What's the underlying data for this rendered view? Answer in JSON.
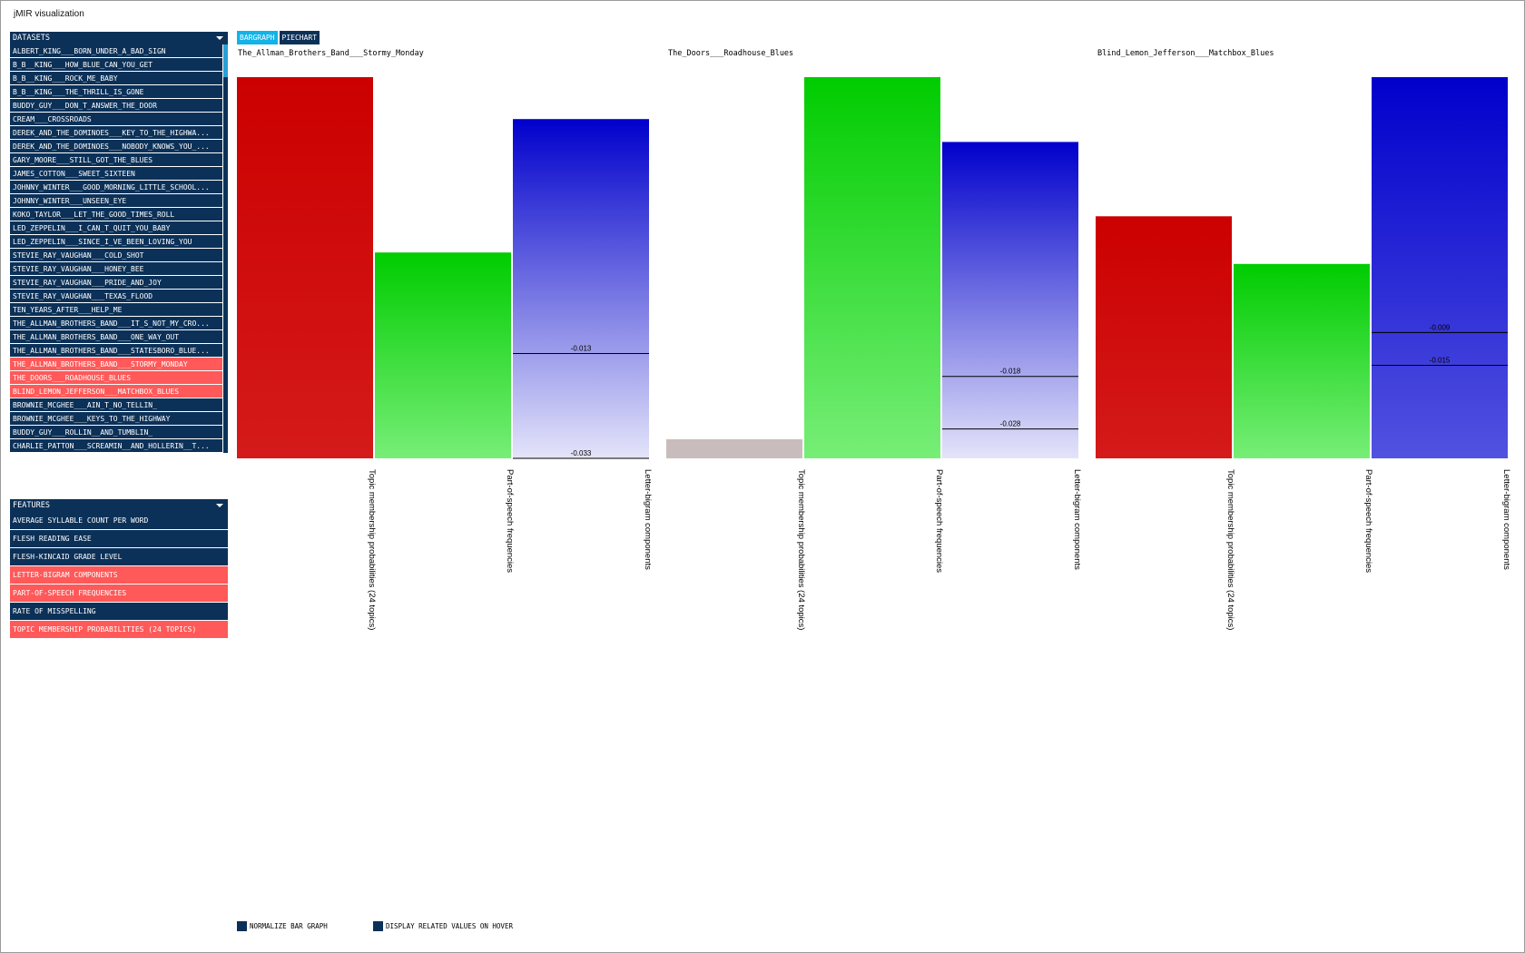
{
  "window": {
    "title": "jMIR visualization"
  },
  "datasets": {
    "header": "DATASETS",
    "items": [
      {
        "label": "ALBERT_KING___BORN_UNDER_A_BAD_SIGN",
        "selected": false
      },
      {
        "label": "B_B__KING___HOW_BLUE_CAN_YOU_GET",
        "selected": false
      },
      {
        "label": "B_B__KING___ROCK_ME_BABY",
        "selected": false
      },
      {
        "label": "B_B__KING___THE_THRILL_IS_GONE",
        "selected": false
      },
      {
        "label": "BUDDY_GUY___DON_T_ANSWER_THE_DOOR",
        "selected": false
      },
      {
        "label": "CREAM___CROSSROADS",
        "selected": false
      },
      {
        "label": "DEREK_AND_THE_DOMINOES___KEY_TO_THE_HIGHWA...",
        "selected": false
      },
      {
        "label": "DEREK_AND_THE_DOMINOES___NOBODY_KNOWS_YOU_...",
        "selected": false
      },
      {
        "label": "GARY_MOORE___STILL_GOT_THE_BLUES",
        "selected": false
      },
      {
        "label": "JAMES_COTTON___SWEET_SIXTEEN",
        "selected": false
      },
      {
        "label": "JOHNNY_WINTER___GOOD_MORNING_LITTLE_SCHOOL...",
        "selected": false
      },
      {
        "label": "JOHNNY_WINTER___UNSEEN_EYE",
        "selected": false
      },
      {
        "label": "KOKO_TAYLOR___LET_THE_GOOD_TIMES_ROLL",
        "selected": false
      },
      {
        "label": "LED_ZEPPELIN___I_CAN_T_QUIT_YOU_BABY",
        "selected": false
      },
      {
        "label": "LED_ZEPPELIN___SINCE_I_VE_BEEN_LOVING_YOU",
        "selected": false
      },
      {
        "label": "STEVIE_RAY_VAUGHAN___COLD_SHOT",
        "selected": false
      },
      {
        "label": "STEVIE_RAY_VAUGHAN___HONEY_BEE",
        "selected": false
      },
      {
        "label": "STEVIE_RAY_VAUGHAN___PRIDE_AND_JOY",
        "selected": false
      },
      {
        "label": "STEVIE_RAY_VAUGHAN___TEXAS_FLOOD",
        "selected": false
      },
      {
        "label": "TEN_YEARS_AFTER___HELP_ME",
        "selected": false
      },
      {
        "label": "THE_ALLMAN_BROTHERS_BAND___IT_S_NOT_MY_CRO...",
        "selected": false
      },
      {
        "label": "THE_ALLMAN_BROTHERS_BAND___ONE_WAY_OUT",
        "selected": false
      },
      {
        "label": "THE_ALLMAN_BROTHERS_BAND___STATESBORO_BLUE...",
        "selected": false
      },
      {
        "label": "THE_ALLMAN_BROTHERS_BAND___STORMY_MONDAY",
        "selected": true
      },
      {
        "label": "THE_DOORS___ROADHOUSE_BLUES",
        "selected": true
      },
      {
        "label": "BLIND_LEMON_JEFFERSON___MATCHBOX_BLUES",
        "selected": true
      },
      {
        "label": "BROWNIE_MCGHEE___AIN_T_NO_TELLIN_",
        "selected": false
      },
      {
        "label": "BROWNIE_MCGHEE___KEYS_TO_THE_HIGHWAY",
        "selected": false
      },
      {
        "label": "BUDDY_GUY___ROLLIN__AND_TUMBLIN_",
        "selected": false
      },
      {
        "label": "CHARLIE_PATTON___SCREAMIN__AND_HOLLERIN__T...",
        "selected": false
      }
    ]
  },
  "features": {
    "header": "FEATURES",
    "items": [
      {
        "label": "Average Syllable Count Per Word",
        "selected": false
      },
      {
        "label": "Flesh Reading Ease",
        "selected": false
      },
      {
        "label": "Flesh-Kincaid Grade Level",
        "selected": false
      },
      {
        "label": "Letter-Bigram Components",
        "selected": true
      },
      {
        "label": "Part-of-Speech Frequencies",
        "selected": true
      },
      {
        "label": "Rate of Misspelling",
        "selected": false
      },
      {
        "label": "Topic Membership Probabilities (24 topics)",
        "selected": true
      }
    ]
  },
  "tabs": [
    {
      "label": "BARGRAPH",
      "active": true
    },
    {
      "label": "PIECHART",
      "active": false
    }
  ],
  "colors": {
    "topic": "#cc0000",
    "pos": "#00cc00",
    "bigram": "#0000cc",
    "topic_muted": "#c9bcbc",
    "panel": "#0c3158",
    "selected": "#ff5959",
    "tab_active": "#11b3e8"
  },
  "chart_data": {
    "type": "bar",
    "categories": [
      "Topic membership probabilities (24 topics)",
      "Part-of-speech frequencies",
      "Letter-bigram components"
    ],
    "series": [
      {
        "name": "The_Allman_Brothers_Band___Stormy_Monday",
        "values": [
          1.0,
          0.54,
          0.89
        ],
        "annotations": [
          {
            "category": 2,
            "label": "-0.013",
            "at": 0.275
          },
          {
            "category": 2,
            "label": "-0.033",
            "at": 0.0
          }
        ]
      },
      {
        "name": "The_Doors___Roadhouse_Blues",
        "values": [
          0.05,
          1.0,
          0.83
        ],
        "annotations": [
          {
            "category": 2,
            "label": "-0.018",
            "at": 0.215
          },
          {
            "category": 2,
            "label": "-0.028",
            "at": 0.077
          }
        ]
      },
      {
        "name": "Blind_Lemon_Jefferson___Matchbox_Blues",
        "values": [
          0.635,
          0.51,
          1.0
        ],
        "annotations": [
          {
            "category": 2,
            "label": "-0.009",
            "at": 0.33
          },
          {
            "category": 2,
            "label": "-0.015",
            "at": 0.244
          }
        ]
      }
    ],
    "ylim": [
      0,
      1
    ],
    "grid": false,
    "legend": "none"
  },
  "footer": {
    "normalize": "NORMALIZE BAR GRAPH",
    "hover": "DISPLAY RELATED VALUES ON HOVER"
  }
}
